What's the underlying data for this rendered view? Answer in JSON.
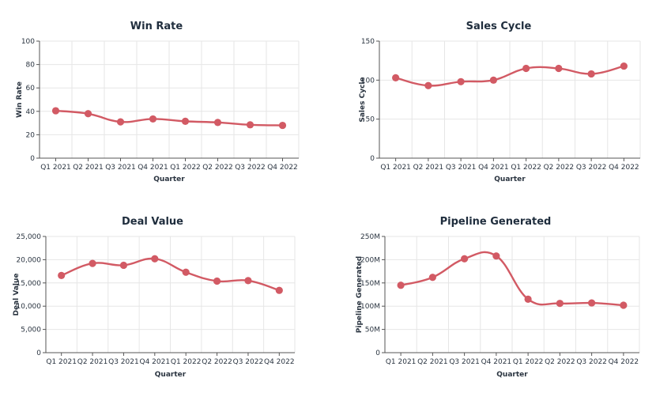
{
  "colors": {
    "series": "#d25a64",
    "title": "#1f2d3d",
    "grid": "#e6e6e6"
  },
  "chart_data": [
    {
      "type": "line",
      "title": "Win Rate",
      "xlabel": "Quarter",
      "ylabel": "Win Rate",
      "categories": [
        "Q1 2021",
        "Q2 2021",
        "Q3 2021",
        "Q4 2021",
        "Q1 2022",
        "Q2 2022",
        "Q3 2022",
        "Q4 2022"
      ],
      "values": [
        40.5,
        38,
        31,
        33.5,
        31.5,
        30.5,
        28.5,
        28
      ],
      "ylim": [
        0,
        100
      ],
      "yticks": [
        0,
        20,
        40,
        60,
        80,
        100
      ],
      "ytick_labels": [
        "0",
        "20",
        "40",
        "60",
        "80",
        "100"
      ],
      "grid": true
    },
    {
      "type": "line",
      "title": "Sales Cycle",
      "xlabel": "Quarter",
      "ylabel": "Sales Cycle",
      "categories": [
        "Q1 2021",
        "Q2 2021",
        "Q3 2021",
        "Q4 2021",
        "Q1 2022",
        "Q2 2022",
        "Q3 2022",
        "Q4 2022"
      ],
      "values": [
        103,
        93,
        98,
        100,
        115,
        115,
        108,
        118
      ],
      "ylim": [
        0,
        150
      ],
      "yticks": [
        0,
        50,
        100,
        150
      ],
      "ytick_labels": [
        "0",
        "50",
        "100",
        "150"
      ],
      "grid": true
    },
    {
      "type": "line",
      "title": "Deal Value",
      "xlabel": "Quarter",
      "ylabel": "Deal Value",
      "categories": [
        "Q1 2021",
        "Q2 2021",
        "Q3 2021",
        "Q4 2021",
        "Q1 2022",
        "Q2 2022",
        "Q3 2022",
        "Q4 2022"
      ],
      "values": [
        16600,
        19200,
        18800,
        20200,
        17300,
        15400,
        15500,
        13400
      ],
      "ylim": [
        0,
        25000
      ],
      "yticks": [
        0,
        5000,
        10000,
        15000,
        20000,
        25000
      ],
      "ytick_labels": [
        "0",
        "5,000",
        "10,000",
        "15,000",
        "20,000",
        "25,000"
      ],
      "grid": true
    },
    {
      "type": "line",
      "title": "Pipeline Generated",
      "xlabel": "Quarter",
      "ylabel": "Pipeline Generated",
      "categories": [
        "Q1 2021",
        "Q2 2021",
        "Q3 2021",
        "Q4 2021",
        "Q1 2022",
        "Q2 2022",
        "Q3 2022",
        "Q4 2022"
      ],
      "values": [
        145000000,
        162000000,
        202000000,
        208000000,
        115000000,
        106000000,
        107000000,
        102000000
      ],
      "ylim": [
        0,
        250000000
      ],
      "yticks": [
        0,
        50000000,
        100000000,
        150000000,
        200000000,
        250000000
      ],
      "ytick_labels": [
        "0",
        "50M",
        "100M",
        "150M",
        "200M",
        "250M"
      ],
      "grid": true
    }
  ]
}
